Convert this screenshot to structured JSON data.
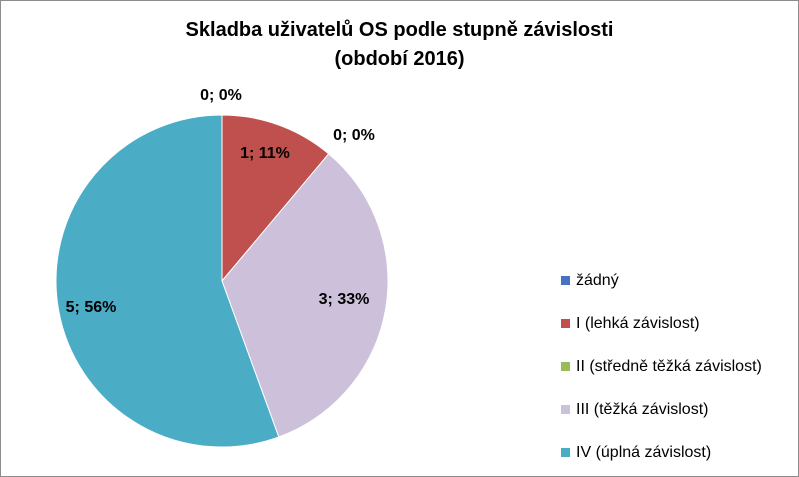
{
  "chart_data": {
    "type": "pie",
    "title": [
      "Skladba uživatelů OS podle stupně závislosti",
      "(období 2016)"
    ],
    "series": [
      {
        "name": "žádný",
        "value": 0,
        "percent_label": "0; 0%",
        "color": "#4472C4"
      },
      {
        "name": "I (lehká závislost)",
        "value": 1,
        "percent_label": "1; 11%",
        "color": "#C0504D"
      },
      {
        "name": "II (středně těžká závislost)",
        "value": 0,
        "percent_label": "0; 0%",
        "color": "#9BBB59"
      },
      {
        "name": "III (těžká závislost)",
        "value": 3,
        "percent_label": "3; 33%",
        "color": "#CCC0DA"
      },
      {
        "name": "IV (úplná závislost)",
        "value": 5,
        "percent_label": "5; 56%",
        "color": "#4BACC6"
      }
    ],
    "legend_position": "right"
  }
}
